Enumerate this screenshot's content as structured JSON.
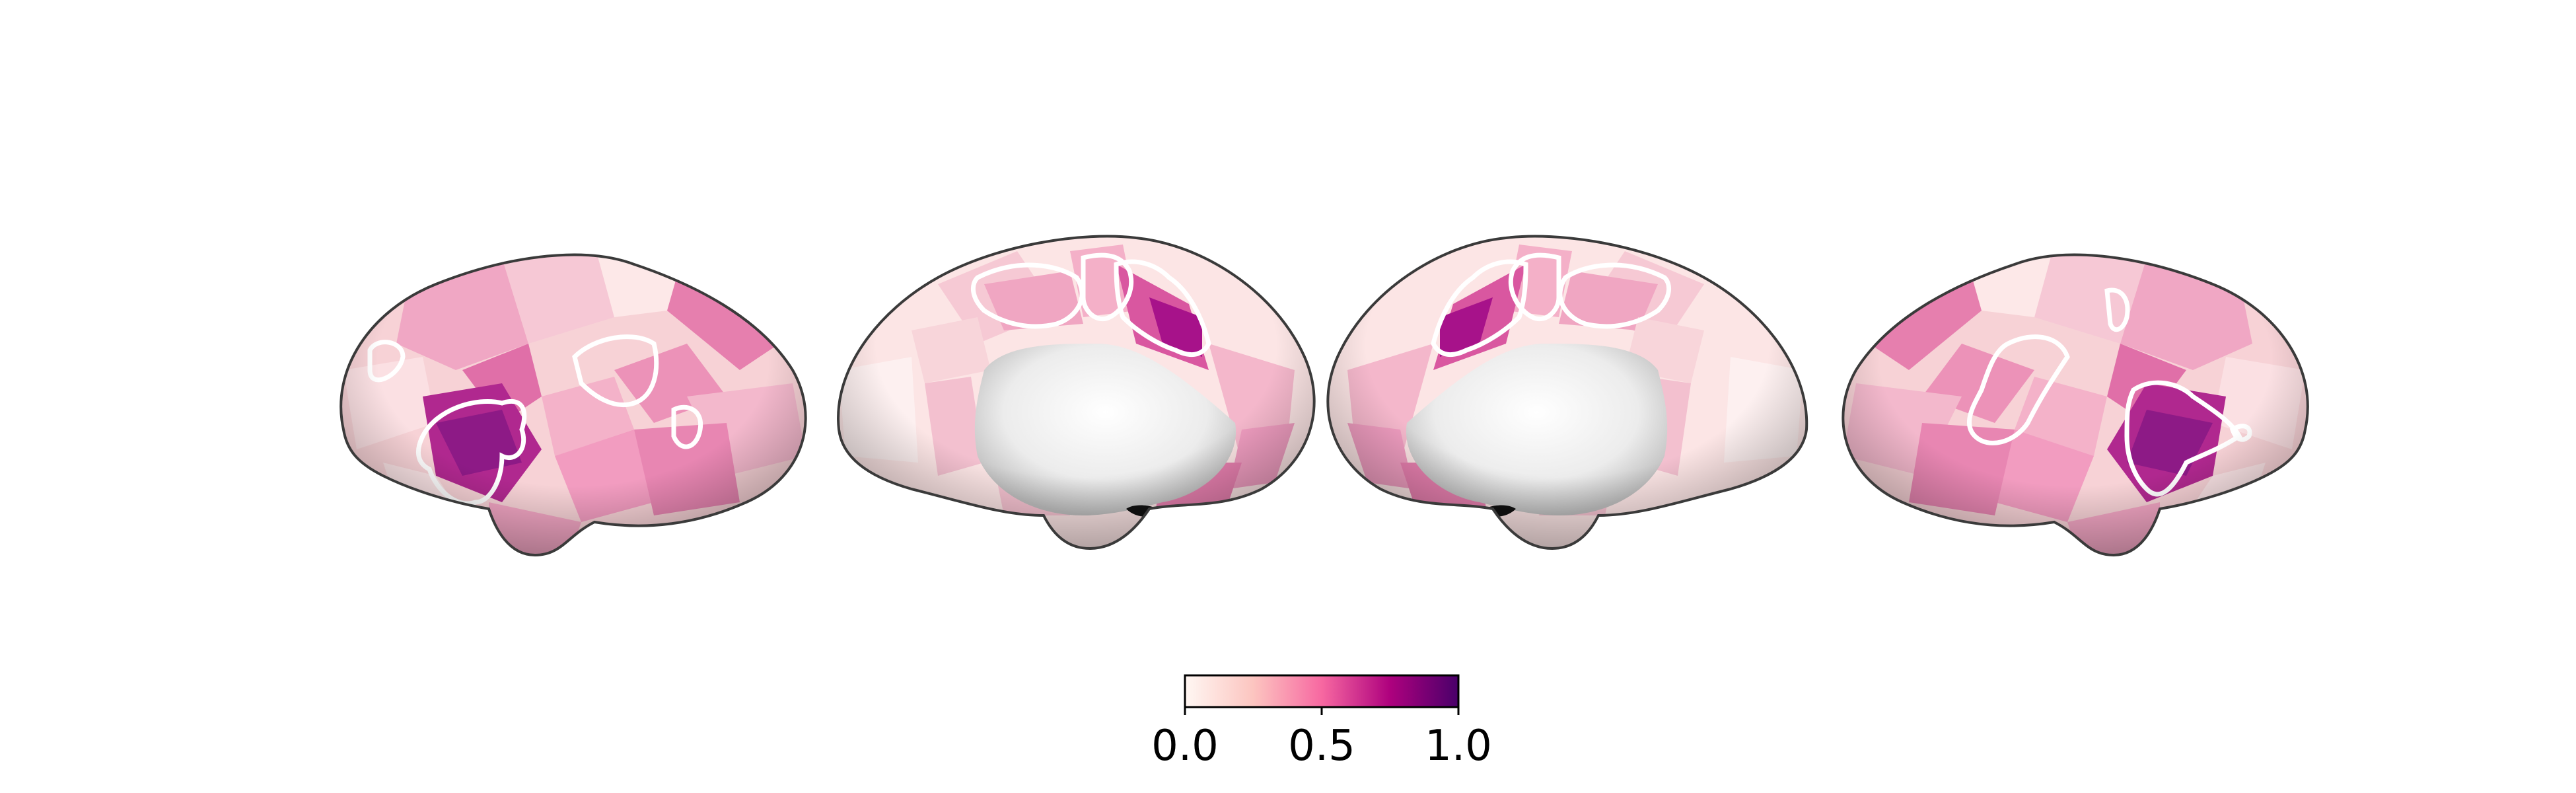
{
  "figure": {
    "views": [
      {
        "hemisphere": "left",
        "view": "lateral"
      },
      {
        "hemisphere": "left",
        "view": "medial"
      },
      {
        "hemisphere": "right",
        "view": "medial"
      },
      {
        "hemisphere": "right",
        "view": "lateral"
      }
    ],
    "outline_color": "#ffffff",
    "medial_wall_color": "#e6e6e6"
  },
  "colorbar": {
    "colormap": "RdPu",
    "vmin": 0.0,
    "vmax": 1.0,
    "ticks": [
      "0.0",
      "0.5",
      "1.0"
    ],
    "stops": [
      "#fff7f3",
      "#fcc5c0",
      "#f768a1",
      "#ae017e",
      "#49006a"
    ]
  }
}
